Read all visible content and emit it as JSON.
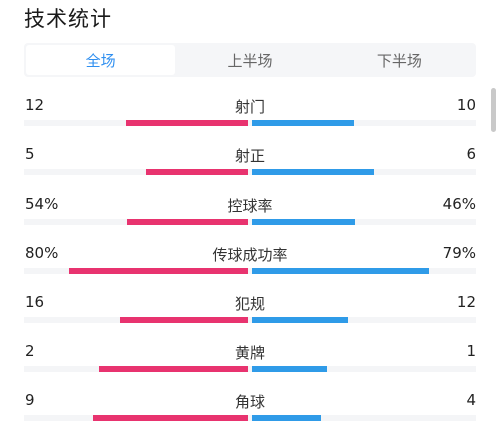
{
  "header": {
    "title": "技术统计"
  },
  "tabs": [
    {
      "label": "全场",
      "active": true
    },
    {
      "label": "上半场",
      "active": false
    },
    {
      "label": "下半场",
      "active": false
    }
  ],
  "colors": {
    "home": "#e8336f",
    "away": "#2f9be8",
    "tab_active": "#2f8ff0"
  },
  "stats": [
    {
      "label": "射门",
      "home": "12",
      "away": "10",
      "home_share": 0.545,
      "away_share": 0.455
    },
    {
      "label": "射正",
      "home": "5",
      "away": "6",
      "home_share": 0.455,
      "away_share": 0.545
    },
    {
      "label": "控球率",
      "home": "54%",
      "away": "46%",
      "home_share": 0.54,
      "away_share": 0.46
    },
    {
      "label": "传球成功率",
      "home": "80%",
      "away": "79%",
      "home_share": 0.8,
      "away_share": 0.79
    },
    {
      "label": "犯规",
      "home": "16",
      "away": "12",
      "home_share": 0.571,
      "away_share": 0.429
    },
    {
      "label": "黄牌",
      "home": "2",
      "away": "1",
      "home_share": 0.667,
      "away_share": 0.333
    },
    {
      "label": "角球",
      "home": "9",
      "away": "4",
      "home_share": 0.692,
      "away_share": 0.308
    }
  ]
}
